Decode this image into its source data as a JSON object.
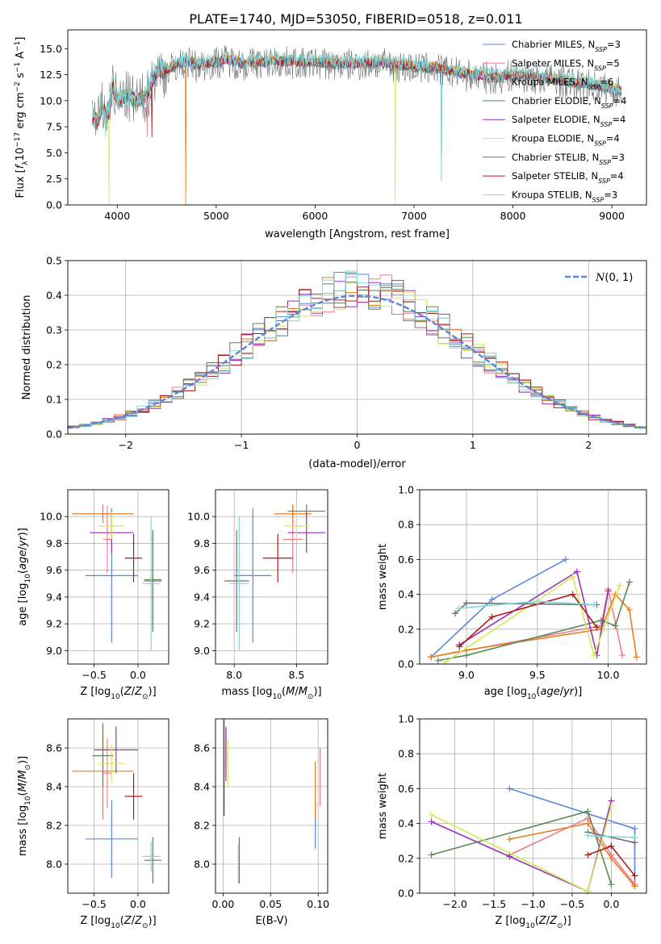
{
  "figure": {
    "title": "PLATE=1740, MJD=53050, FIBERID=0518, z=0.011"
  },
  "colors": {
    "chabrier_miles": "#5b87db",
    "salpeter_miles": "#f07f8e",
    "kroupa_miles": "#e67e22",
    "chabrier_elodie": "#5a8a5a",
    "salpeter_elodie": "#9b30b5",
    "kroupa_elodie": "#d7e85a",
    "chabrier_stelib": "#707070",
    "salpeter_stelib": "#b01a1a",
    "kroupa_stelib": "#7dd8de",
    "gaussian": "#5b87db"
  },
  "chart_data": [
    {
      "id": "spectrum",
      "type": "line",
      "title": "PLATE=1740, MJD=53050, FIBERID=0518, z=0.011",
      "xlabel": "wavelength [Angstrom, rest frame]",
      "ylabel": "Flux [f_λ 10^-17 erg cm^-2 s^-1 A^-1]",
      "xlim": [
        3500,
        9350
      ],
      "ylim": [
        0,
        16.8
      ],
      "xticks": [
        4000,
        5000,
        6000,
        7000,
        8000,
        9000
      ],
      "yticks": [
        0.0,
        2.5,
        5.0,
        7.5,
        10.0,
        12.5,
        15.0
      ],
      "grid": false,
      "legend_position": "top-right",
      "spectrum_profile": {
        "x": [
          3750,
          3800,
          3850,
          3900,
          3950,
          4000,
          4100,
          4200,
          4300,
          4350,
          4400,
          4500,
          4600,
          4700,
          4800,
          4900,
          5000,
          5100,
          5200,
          5300,
          5400,
          5500,
          5600,
          5700,
          5800,
          5900,
          6000,
          6200,
          6400,
          6600,
          6800,
          7000,
          7200,
          7400,
          7600,
          7800,
          8000,
          8200,
          8400,
          8600,
          8800,
          9000,
          9100
        ],
        "y": [
          8.5,
          8.0,
          9.5,
          8.5,
          11.5,
          10.0,
          10.5,
          10.0,
          10.5,
          12.0,
          12.8,
          13.0,
          13.5,
          13.8,
          13.5,
          13.6,
          13.8,
          14.0,
          13.8,
          13.6,
          13.8,
          13.7,
          13.9,
          13.8,
          13.8,
          13.6,
          13.8,
          13.6,
          13.6,
          13.7,
          13.5,
          13.3,
          13.2,
          12.8,
          12.5,
          12.3,
          12.5,
          12.3,
          12.2,
          11.8,
          11.6,
          11.2,
          11.0
        ]
      },
      "series": [
        {
          "name": "Chabrier MILES, N_SSP=3",
          "legend": "Chabrier MILES, N",
          "sub": "SSP",
          "suffix": "=3",
          "color_key": "chabrier_miles"
        },
        {
          "name": "Salpeter MILES, N_SSP=5",
          "legend": "Salpeter MILES, N",
          "sub": "SSP",
          "suffix": "=5",
          "color_key": "salpeter_miles"
        },
        {
          "name": "Kroupa MILES, N_SSP=6",
          "legend": "Kroupa MILES, N",
          "sub": "SSP",
          "suffix": "=6",
          "color_key": "kroupa_miles"
        },
        {
          "name": "Chabrier ELODIE, N_SSP=4",
          "legend": "Chabrier ELODIE, N",
          "sub": "SSP",
          "suffix": "=4",
          "color_key": "chabrier_elodie"
        },
        {
          "name": "Salpeter ELODIE, N_SSP=4",
          "legend": "Salpeter ELODIE, N",
          "sub": "SSP",
          "suffix": "=4",
          "color_key": "salpeter_elodie"
        },
        {
          "name": "Kroupa ELODIE, N_SSP=4",
          "legend": "Kroupa ELODIE, N",
          "sub": "SSP",
          "suffix": "=4",
          "color_key": "kroupa_elodie"
        },
        {
          "name": "Chabrier STELIB, N_SSP=3",
          "legend": "Chabrier STELIB, N",
          "sub": "SSP",
          "suffix": "=3",
          "color_key": "chabrier_stelib"
        },
        {
          "name": "Salpeter STELIB, N_SSP=4",
          "legend": "Salpeter STELIB, N",
          "sub": "SSP",
          "suffix": "=4",
          "color_key": "salpeter_stelib"
        },
        {
          "name": "Kroupa STELIB, N_SSP=3",
          "legend": "Kroupa STELIB, N",
          "sub": "SSP",
          "suffix": "=3",
          "color_key": "kroupa_stelib"
        }
      ]
    },
    {
      "id": "residuals",
      "type": "bar",
      "xlabel": "(data-model)/error",
      "ylabel": "Normed distribution",
      "xlim": [
        -2.5,
        2.5
      ],
      "ylim": [
        0,
        0.5
      ],
      "xticks": [
        -2,
        -1,
        0,
        1,
        2
      ],
      "yticks": [
        0.0,
        0.1,
        0.2,
        0.3,
        0.4,
        0.5
      ],
      "grid": true,
      "legend_position": "top-right",
      "legend_label": "N(0,1)",
      "bin_width": 0.1,
      "bin_start": -2.5
    },
    {
      "id": "age_vs_z",
      "type": "scatter",
      "xlabel": "Z [log10(Z/Z_sun)]",
      "ylabel": "age [log10(age/yr)]",
      "xlim": [
        -0.8,
        0.35
      ],
      "ylim": [
        8.9,
        10.2
      ],
      "xticks": [
        -0.5,
        0.0
      ],
      "yticks": [
        9.0,
        9.2,
        9.4,
        9.6,
        9.8,
        10.0
      ],
      "grid": true,
      "points": [
        {
          "color_key": "chabrier_miles",
          "x": -0.3,
          "xerr": 0.3,
          "y": 9.56,
          "yerr": 0.5
        },
        {
          "color_key": "salpeter_miles",
          "x": -0.35,
          "xerr": 0.05,
          "y": 9.83,
          "yerr": 0.25
        },
        {
          "color_key": "kroupa_miles",
          "x": -0.4,
          "xerr": 0.35,
          "y": 10.02,
          "yerr": 0.07
        },
        {
          "color_key": "chabrier_elodie",
          "x": 0.17,
          "xerr": 0.1,
          "y": 9.53,
          "yerr": 0.35
        },
        {
          "color_key": "salpeter_elodie",
          "x": -0.3,
          "xerr": 0.25,
          "y": 9.88,
          "yerr": 0.15
        },
        {
          "color_key": "kroupa_elodie",
          "x": -0.3,
          "xerr": 0.15,
          "y": 9.93,
          "yerr": 0.1
        },
        {
          "color_key": "chabrier_stelib",
          "x": 0.17,
          "xerr": 0.1,
          "y": 9.52,
          "yerr": 0.38
        },
        {
          "color_key": "salpeter_stelib",
          "x": -0.05,
          "xerr": 0.1,
          "y": 9.69,
          "yerr": 0.18
        },
        {
          "color_key": "kroupa_stelib",
          "x": 0.15,
          "xerr": 0.1,
          "y": 9.5,
          "yerr": 0.5
        }
      ]
    },
    {
      "id": "age_vs_mass",
      "type": "scatter",
      "xlabel": "mass [log10(M/M_sun)]",
      "ylabel": "",
      "xlim": [
        7.85,
        8.75
      ],
      "ylim": [
        8.9,
        10.2
      ],
      "xticks": [
        8.0,
        8.5
      ],
      "yticks": [
        9.0,
        9.2,
        9.4,
        9.6,
        9.8,
        10.0
      ],
      "grid": true,
      "points": [
        {
          "color_key": "chabrier_miles",
          "x": 8.15,
          "xerr": 0.15,
          "y": 9.56,
          "yerr": 0.5
        },
        {
          "color_key": "salpeter_miles",
          "x": 8.47,
          "xerr": 0.08,
          "y": 9.83,
          "yerr": 0.25
        },
        {
          "color_key": "kroupa_miles",
          "x": 8.47,
          "xerr": 0.15,
          "y": 10.02,
          "yerr": 0.07
        },
        {
          "color_key": "chabrier_elodie",
          "x": 8.58,
          "xerr": 0.15,
          "y": 10.04,
          "yerr": 0.05
        },
        {
          "color_key": "salpeter_elodie",
          "x": 8.58,
          "xerr": 0.15,
          "y": 9.88,
          "yerr": 0.15
        },
        {
          "color_key": "kroupa_elodie",
          "x": 8.5,
          "xerr": 0.1,
          "y": 9.93,
          "yerr": 0.1
        },
        {
          "color_key": "chabrier_stelib",
          "x": 8.02,
          "xerr": 0.1,
          "y": 9.52,
          "yerr": 0.38
        },
        {
          "color_key": "salpeter_stelib",
          "x": 8.35,
          "xerr": 0.12,
          "y": 9.69,
          "yerr": 0.18
        },
        {
          "color_key": "kroupa_stelib",
          "x": 8.04,
          "xerr": 0.08,
          "y": 9.5,
          "yerr": 0.5
        }
      ]
    },
    {
      "id": "weight_vs_age",
      "type": "line",
      "xlabel": "age [log10(age/yr)]",
      "ylabel": "mass weight",
      "xlim": [
        8.67,
        10.27
      ],
      "ylim": [
        0,
        1.0
      ],
      "xticks": [
        9.0,
        9.5,
        10.0
      ],
      "yticks": [
        0.0,
        0.2,
        0.4,
        0.6,
        0.8,
        1.0
      ],
      "grid": true,
      "series": [
        {
          "color_key": "chabrier_miles",
          "x": [
            8.75,
            9.18,
            9.7
          ],
          "y": [
            0.04,
            0.37,
            0.6
          ]
        },
        {
          "color_key": "salpeter_miles",
          "x": [
            8.75,
            9.95,
            10.0,
            10.1
          ],
          "y": [
            0.04,
            0.22,
            0.43,
            0.05
          ]
        },
        {
          "color_key": "kroupa_miles",
          "x": [
            8.75,
            9.0,
            9.95,
            10.05,
            10.15,
            10.2
          ],
          "y": [
            0.04,
            0.08,
            0.2,
            0.4,
            0.31,
            0.04
          ]
        },
        {
          "color_key": "chabrier_elodie",
          "x": [
            8.8,
            9.0,
            9.95,
            10.05,
            10.15
          ],
          "y": [
            0.02,
            0.05,
            0.25,
            0.22,
            0.47
          ]
        },
        {
          "color_key": "salpeter_elodie",
          "x": [
            8.95,
            9.78,
            9.92,
            10.0
          ],
          "y": [
            0.11,
            0.53,
            0.05,
            0.42
          ]
        },
        {
          "color_key": "kroupa_elodie",
          "x": [
            8.85,
            9.75,
            9.9,
            10.08
          ],
          "y": [
            0.01,
            0.5,
            0.05,
            0.45
          ]
        },
        {
          "color_key": "chabrier_stelib",
          "x": [
            8.92,
            9.0,
            9.92
          ],
          "y": [
            0.29,
            0.35,
            0.34
          ]
        },
        {
          "color_key": "salpeter_stelib",
          "x": [
            8.95,
            9.18,
            9.75,
            9.92
          ],
          "y": [
            0.1,
            0.27,
            0.4,
            0.21
          ]
        },
        {
          "color_key": "kroupa_stelib",
          "x": [
            8.95,
            9.5,
            9.9
          ],
          "y": [
            0.32,
            0.36,
            0.34
          ]
        }
      ]
    },
    {
      "id": "mass_vs_z",
      "type": "scatter",
      "xlabel": "Z [log10(Z/Z_sun)]",
      "ylabel": "mass [log10(M/M_sun)]",
      "xlim": [
        -0.8,
        0.35
      ],
      "ylim": [
        7.85,
        8.75
      ],
      "xticks": [
        -0.5,
        0.0
      ],
      "yticks": [
        8.0,
        8.2,
        8.4,
        8.6
      ],
      "grid": true,
      "points": [
        {
          "color_key": "chabrier_miles",
          "x": -0.3,
          "xerr": 0.3,
          "y": 8.13,
          "yerr": 0.2
        },
        {
          "color_key": "salpeter_miles",
          "x": -0.35,
          "xerr": 0.05,
          "y": 8.47,
          "yerr": 0.18
        },
        {
          "color_key": "kroupa_miles",
          "x": -0.4,
          "xerr": 0.35,
          "y": 8.48,
          "yerr": 0.25
        },
        {
          "color_key": "chabrier_elodie",
          "x": -0.4,
          "xerr": 0.12,
          "y": 8.56,
          "yerr": 0.16
        },
        {
          "color_key": "salpeter_elodie",
          "x": -0.25,
          "xerr": 0.25,
          "y": 8.59,
          "yerr": 0.12
        },
        {
          "color_key": "kroupa_elodie",
          "x": -0.3,
          "xerr": 0.15,
          "y": 8.52,
          "yerr": 0.1
        },
        {
          "color_key": "chabrier_stelib",
          "x": 0.17,
          "xerr": 0.1,
          "y": 8.02,
          "yerr": 0.12
        },
        {
          "color_key": "salpeter_stelib",
          "x": -0.05,
          "xerr": 0.1,
          "y": 8.35,
          "yerr": 0.12
        },
        {
          "color_key": "kroupa_stelib",
          "x": 0.15,
          "xerr": 0.1,
          "y": 8.04,
          "yerr": 0.08
        }
      ]
    },
    {
      "id": "mass_vs_ebv",
      "type": "scatter",
      "xlabel": "E(B-V)",
      "ylabel": "",
      "xlim": [
        -0.008,
        0.11
      ],
      "ylim": [
        7.85,
        8.75
      ],
      "xticks": [
        0.0,
        0.05,
        0.1
      ],
      "yticks": [
        8.0,
        8.2,
        8.4,
        8.6
      ],
      "grid": true,
      "points": [
        {
          "color_key": "chabrier_miles",
          "x": 0.097,
          "xerr": 0,
          "y": 8.2,
          "yerr": 0.12
        },
        {
          "color_key": "salpeter_miles",
          "x": 0.102,
          "xerr": 0,
          "y": 8.45,
          "yerr": 0.15
        },
        {
          "color_key": "kroupa_miles",
          "x": 0.097,
          "xerr": 0,
          "y": 8.38,
          "yerr": 0.15
        },
        {
          "color_key": "chabrier_elodie",
          "x": 0.003,
          "xerr": 0,
          "y": 8.6,
          "yerr": 0.1
        },
        {
          "color_key": "salpeter_elodie",
          "x": 0.003,
          "xerr": 0,
          "y": 8.57,
          "yerr": 0.14
        },
        {
          "color_key": "kroupa_elodie",
          "x": 0.005,
          "xerr": 0,
          "y": 8.52,
          "yerr": 0.12
        },
        {
          "color_key": "chabrier_stelib",
          "x": 0.017,
          "xerr": 0,
          "y": 8.02,
          "yerr": 0.12
        },
        {
          "color_key": "salpeter_stelib",
          "x": 0.001,
          "xerr": 0,
          "y": 8.5,
          "yerr": 0.25
        },
        {
          "color_key": "kroupa_stelib",
          "x": 0.016,
          "xerr": 0,
          "y": 8.0,
          "yerr": 0.1
        }
      ]
    },
    {
      "id": "weight_vs_z",
      "type": "line",
      "xlabel": "Z [log10(Z/Z_sun)]",
      "ylabel": "mass weight",
      "xlim": [
        -2.45,
        0.45
      ],
      "ylim": [
        0,
        1.0
      ],
      "xticks": [
        -2.0,
        -1.5,
        -1.0,
        -0.5,
        0.0
      ],
      "yticks": [
        0.0,
        0.2,
        0.4,
        0.6,
        0.8,
        1.0
      ],
      "grid": true,
      "series": [
        {
          "color_key": "chabrier_miles",
          "x": [
            -1.3,
            0.3,
            0.3
          ],
          "y": [
            0.6,
            0.37,
            0.04
          ]
        },
        {
          "color_key": "salpeter_miles",
          "x": [
            -1.3,
            -0.3,
            0.0,
            0.3
          ],
          "y": [
            0.22,
            0.43,
            0.22,
            0.05
          ]
        },
        {
          "color_key": "kroupa_miles",
          "x": [
            -1.3,
            -0.3,
            0.0,
            0.3
          ],
          "y": [
            0.31,
            0.4,
            0.2,
            0.04
          ]
        },
        {
          "color_key": "chabrier_elodie",
          "x": [
            -2.3,
            -0.3,
            0.0
          ],
          "y": [
            0.22,
            0.47,
            0.05
          ]
        },
        {
          "color_key": "salpeter_elodie",
          "x": [
            -2.3,
            -1.3,
            -0.3,
            0.0
          ],
          "y": [
            0.41,
            0.21,
            0.01,
            0.53
          ]
        },
        {
          "color_key": "kroupa_elodie",
          "x": [
            -2.3,
            -0.3,
            0.0
          ],
          "y": [
            0.45,
            0.01,
            0.5
          ]
        },
        {
          "color_key": "chabrier_stelib",
          "x": [
            -0.3,
            0.3
          ],
          "y": [
            0.35,
            0.29
          ]
        },
        {
          "color_key": "salpeter_stelib",
          "x": [
            -0.3,
            0.0,
            0.3
          ],
          "y": [
            0.22,
            0.27,
            0.1
          ]
        },
        {
          "color_key": "kroupa_stelib",
          "x": [
            -0.3,
            0.3
          ],
          "y": [
            0.33,
            0.32
          ]
        }
      ]
    }
  ]
}
